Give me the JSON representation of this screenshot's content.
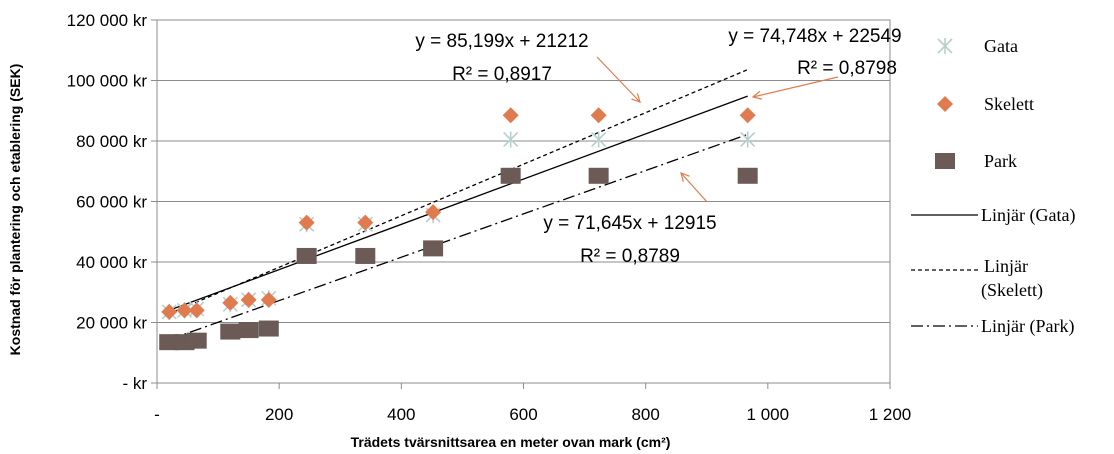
{
  "chart_data": {
    "type": "scatter",
    "xlabel": "Trädets tvärsnittsarea en meter ovan mark (cm²)",
    "ylabel": "Kostnad för plantering och etablering (SEK)",
    "xlim": [
      0,
      1200
    ],
    "ylim": [
      0,
      120000
    ],
    "x_ticks": [
      {
        "value": 0,
        "label": "-"
      },
      {
        "value": 200,
        "label": "200"
      },
      {
        "value": 400,
        "label": "400"
      },
      {
        "value": 600,
        "label": "600"
      },
      {
        "value": 800,
        "label": "800"
      },
      {
        "value": 1000,
        "label": "1 000"
      },
      {
        "value": 1200,
        "label": "1 200"
      }
    ],
    "y_ticks": [
      {
        "value": 0,
        "label": "-   kr"
      },
      {
        "value": 20000,
        "label": "20 000 kr"
      },
      {
        "value": 40000,
        "label": "40 000 kr"
      },
      {
        "value": 60000,
        "label": "60 000 kr"
      },
      {
        "value": 80000,
        "label": "80 000 kr"
      },
      {
        "value": 100000,
        "label": "100 000 kr"
      },
      {
        "value": 120000,
        "label": "120 000 kr"
      }
    ],
    "grid": "horizontal",
    "legend_position": "right",
    "series": [
      {
        "name": "Gata",
        "marker": "asterisk",
        "color": "#b7cfcc",
        "points": [
          [
            20,
            23500
          ],
          [
            45,
            24000
          ],
          [
            65,
            24500
          ],
          [
            120,
            26000
          ],
          [
            150,
            27500
          ],
          [
            183,
            28000
          ],
          [
            245,
            52500
          ],
          [
            341,
            52500
          ],
          [
            452,
            55500
          ],
          [
            579,
            80500
          ],
          [
            723,
            80500
          ],
          [
            967,
            80500
          ]
        ]
      },
      {
        "name": "Skelett",
        "marker": "diamond",
        "color": "#e07b4f",
        "points": [
          [
            20,
            23500
          ],
          [
            45,
            24000
          ],
          [
            65,
            24000
          ],
          [
            120,
            26500
          ],
          [
            150,
            27500
          ],
          [
            183,
            27500
          ],
          [
            245,
            53000
          ],
          [
            341,
            53000
          ],
          [
            452,
            56500
          ],
          [
            579,
            88500
          ],
          [
            723,
            88500
          ],
          [
            967,
            88500
          ]
        ]
      },
      {
        "name": "Park",
        "marker": "square",
        "color": "#6b5a55",
        "points": [
          [
            20,
            13500
          ],
          [
            45,
            13500
          ],
          [
            65,
            14000
          ],
          [
            120,
            17000
          ],
          [
            150,
            17500
          ],
          [
            183,
            18000
          ],
          [
            245,
            42000
          ],
          [
            341,
            42000
          ],
          [
            452,
            44500
          ],
          [
            579,
            68500
          ],
          [
            723,
            68500
          ],
          [
            967,
            68500
          ]
        ]
      }
    ],
    "trendlines": [
      {
        "name": "Linjär (Gata)",
        "slope": 74.748,
        "intercept": 22549,
        "x_range": [
          20,
          967
        ],
        "dash": "solid"
      },
      {
        "name": "Linjär (Skelett)",
        "slope": 85.199,
        "intercept": 21212,
        "x_range": [
          20,
          967
        ],
        "dash": "dashed"
      },
      {
        "name": "Linjär (Park)",
        "slope": 71.645,
        "intercept": 12915,
        "x_range": [
          20,
          967
        ],
        "dash": "dashdot"
      }
    ],
    "annotations": [
      {
        "eq": "y = 85,199x + 21212",
        "r2": "R² = 0,8917"
      },
      {
        "eq": "y = 74,748x + 22549",
        "r2": "R² = 0,8798"
      },
      {
        "eq": "y = 71,645x + 12915",
        "r2": "R² = 0,8789"
      }
    ],
    "legend": [
      {
        "label": "Gata",
        "type": "marker",
        "series": 0
      },
      {
        "label": "Skelett",
        "type": "marker",
        "series": 1
      },
      {
        "label": "Park",
        "type": "marker",
        "series": 2
      },
      {
        "label": "Linjär (Gata)",
        "type": "line",
        "trend": 0
      },
      {
        "lines": [
          "Linjär",
          "(Skelett)"
        ],
        "type": "line",
        "trend": 1
      },
      {
        "label": "Linjär (Park)",
        "type": "line",
        "trend": 2
      }
    ]
  }
}
